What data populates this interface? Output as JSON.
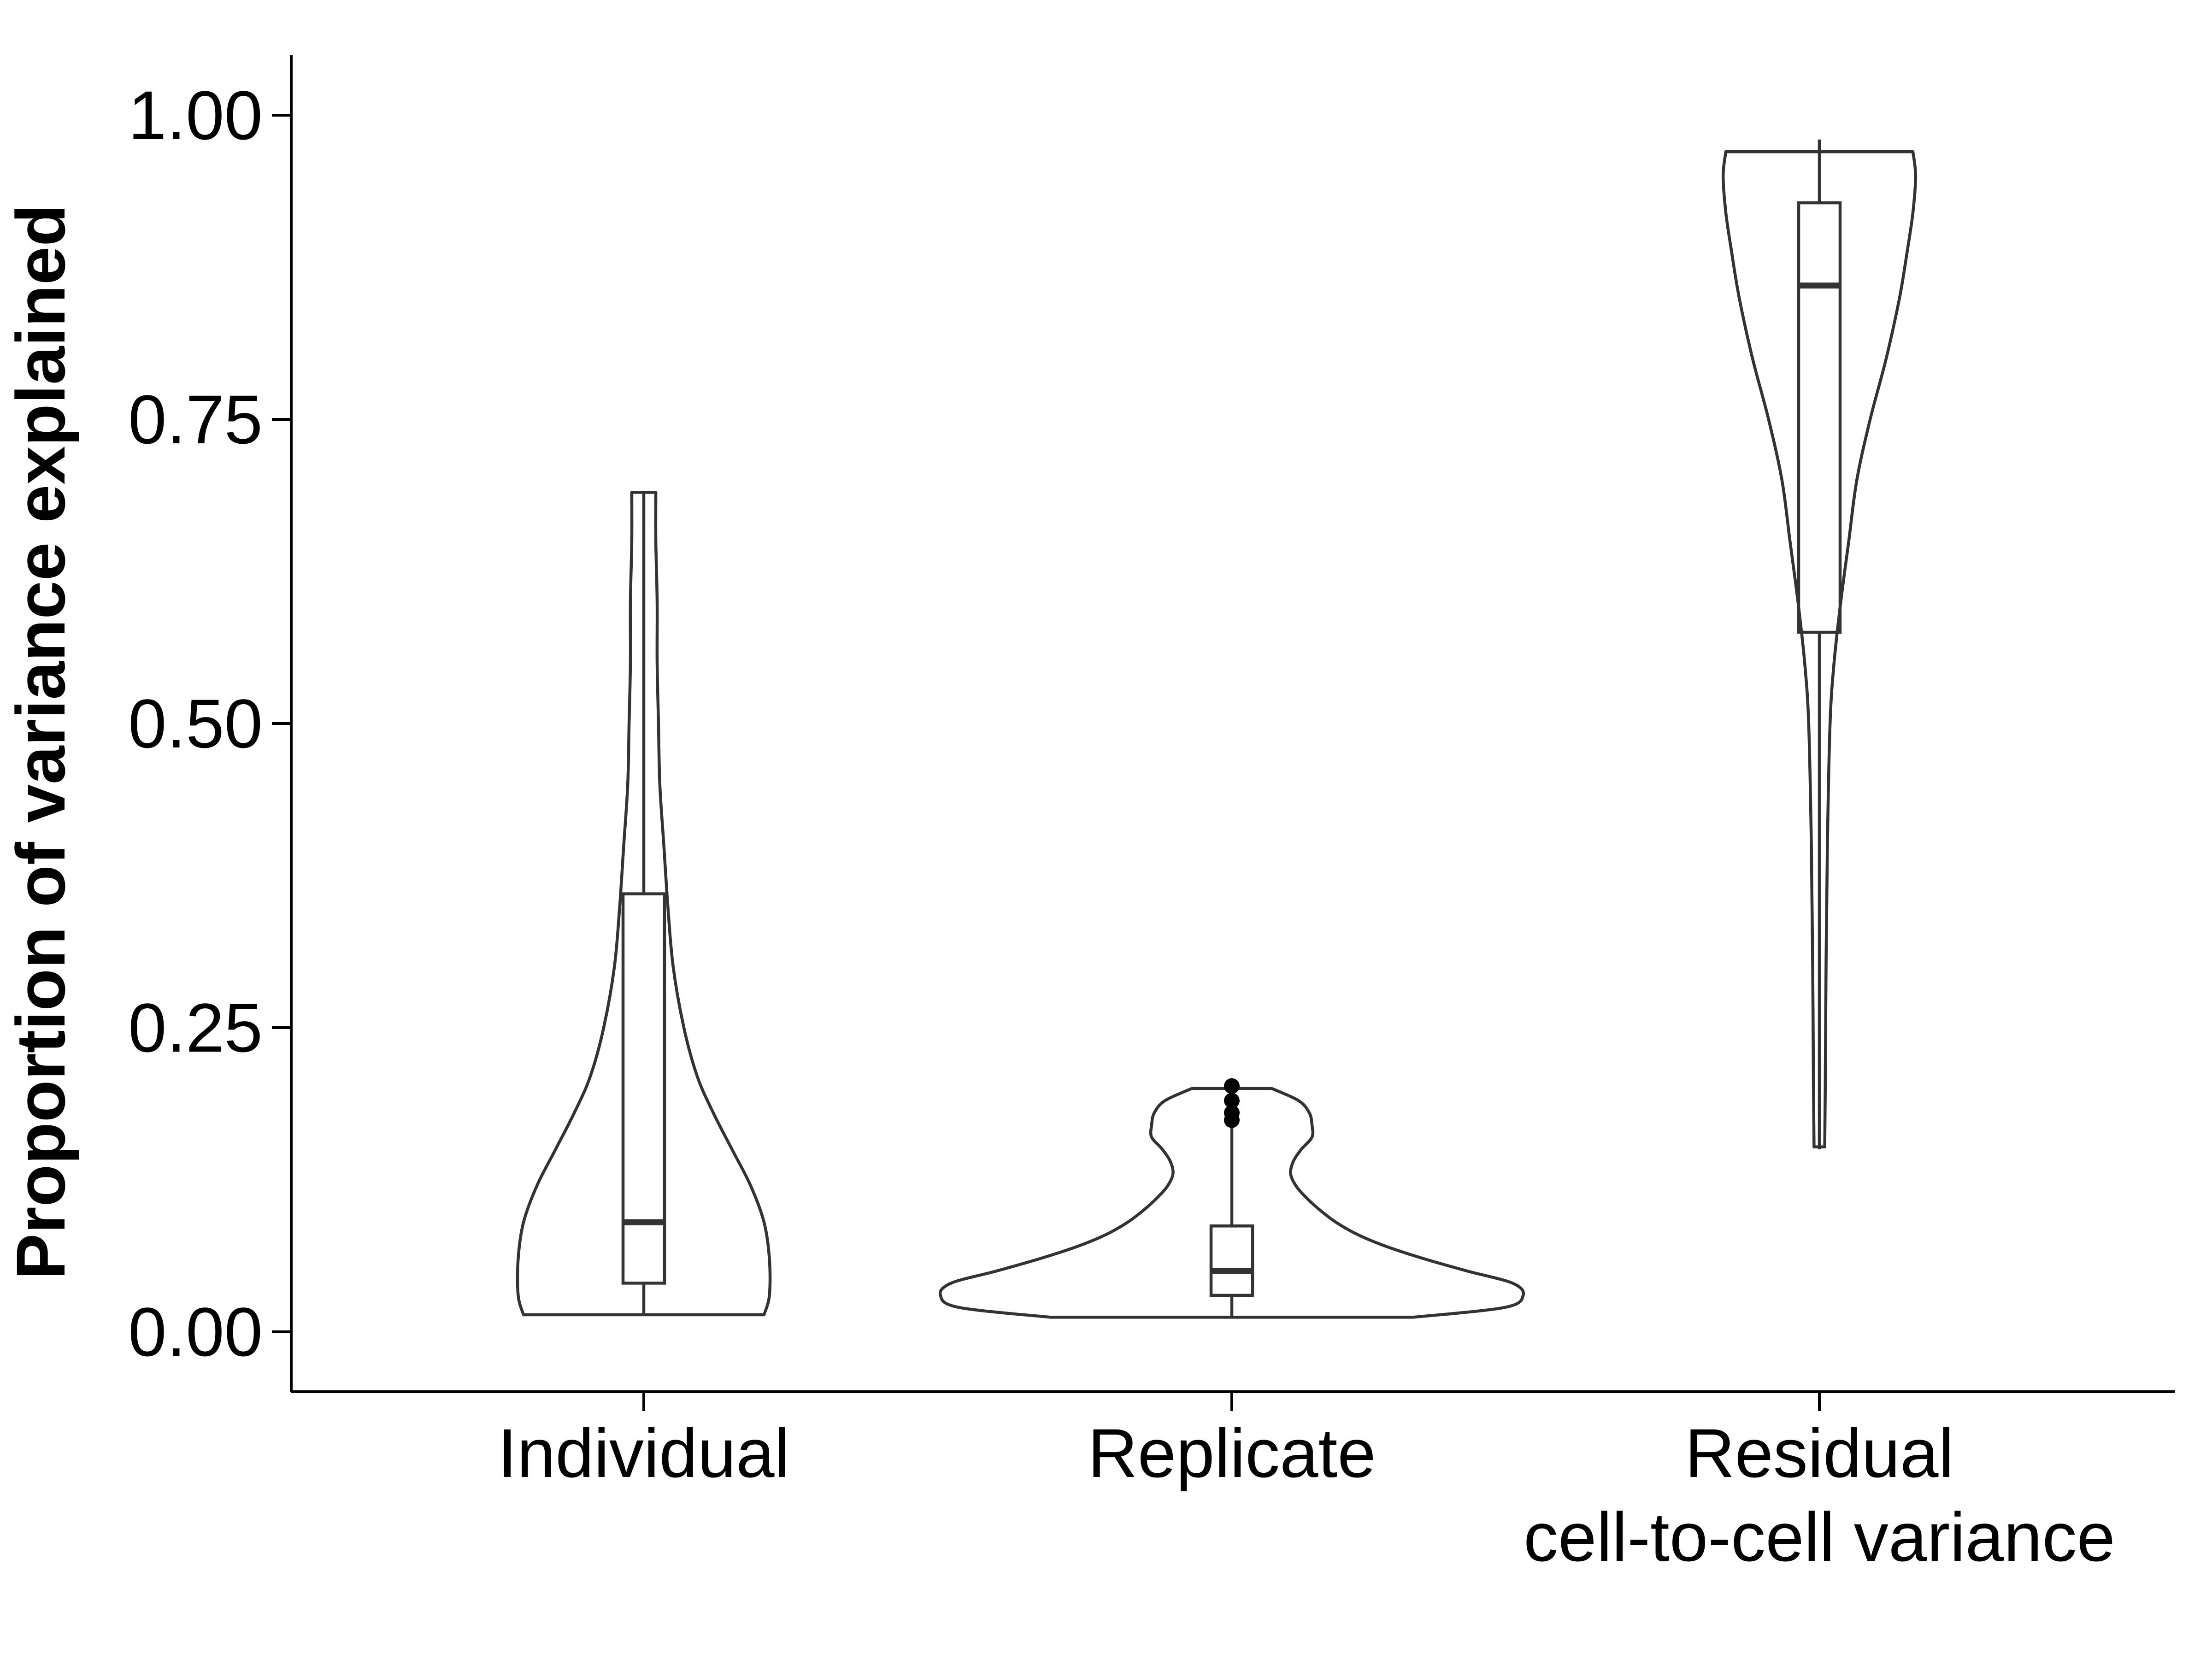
{
  "chart_data": {
    "type": "violin",
    "xlabel": "",
    "ylabel": "Proportion of variance explained",
    "ylim": [
      -0.05,
      1.05
    ],
    "y_ticks": [
      {
        "value": 0.0,
        "label": "0.00"
      },
      {
        "value": 0.25,
        "label": "0.25"
      },
      {
        "value": 0.5,
        "label": "0.50"
      },
      {
        "value": 0.75,
        "label": "0.75"
      },
      {
        "value": 1.0,
        "label": "1.00"
      }
    ],
    "grid": false,
    "legend": "none",
    "series": [
      {
        "category": "Individual",
        "category_lines": [
          "Individual"
        ],
        "min": 0.014,
        "q1": 0.04,
        "median": 0.09,
        "q3": 0.36,
        "max": 0.69,
        "outliers": [],
        "density": [
          [
            0.014,
            0.45
          ],
          [
            0.03,
            0.47
          ],
          [
            0.06,
            0.47
          ],
          [
            0.09,
            0.45
          ],
          [
            0.12,
            0.4
          ],
          [
            0.15,
            0.33
          ],
          [
            0.18,
            0.26
          ],
          [
            0.21,
            0.2
          ],
          [
            0.25,
            0.15
          ],
          [
            0.3,
            0.11
          ],
          [
            0.35,
            0.09
          ],
          [
            0.4,
            0.075
          ],
          [
            0.45,
            0.06
          ],
          [
            0.5,
            0.055
          ],
          [
            0.55,
            0.05
          ],
          [
            0.6,
            0.05
          ],
          [
            0.65,
            0.045
          ],
          [
            0.69,
            0.045
          ]
        ]
      },
      {
        "category": "Replicate",
        "category_lines": [
          "Replicate"
        ],
        "min": 0.012,
        "q1": 0.03,
        "median": 0.05,
        "q3": 0.087,
        "max": 0.168,
        "outliers": [
          0.174,
          0.18,
          0.19,
          0.202
        ],
        "density": [
          [
            0.012,
            0.68
          ],
          [
            0.02,
            1.02
          ],
          [
            0.03,
            1.09
          ],
          [
            0.04,
            1.05
          ],
          [
            0.05,
            0.88
          ],
          [
            0.06,
            0.72
          ],
          [
            0.07,
            0.58
          ],
          [
            0.08,
            0.47
          ],
          [
            0.09,
            0.39
          ],
          [
            0.1,
            0.33
          ],
          [
            0.11,
            0.28
          ],
          [
            0.12,
            0.24
          ],
          [
            0.13,
            0.22
          ],
          [
            0.14,
            0.23
          ],
          [
            0.15,
            0.26
          ],
          [
            0.16,
            0.3
          ],
          [
            0.17,
            0.3
          ],
          [
            0.18,
            0.29
          ],
          [
            0.19,
            0.25
          ],
          [
            0.2,
            0.15
          ]
        ]
      },
      {
        "category": "Residual\ncell-to-cell variance",
        "category_lines": [
          "Residual",
          "cell-to-cell variance"
        ],
        "min": 0.15,
        "q1": 0.575,
        "median": 0.86,
        "q3": 0.928,
        "max": 0.98,
        "outliers": [],
        "density": [
          [
            0.152,
            0.02
          ],
          [
            0.2,
            0.022
          ],
          [
            0.3,
            0.025
          ],
          [
            0.4,
            0.03
          ],
          [
            0.5,
            0.04
          ],
          [
            0.55,
            0.055
          ],
          [
            0.6,
            0.08
          ],
          [
            0.65,
            0.11
          ],
          [
            0.7,
            0.14
          ],
          [
            0.75,
            0.19
          ],
          [
            0.8,
            0.25
          ],
          [
            0.85,
            0.3
          ],
          [
            0.89,
            0.33
          ],
          [
            0.92,
            0.35
          ],
          [
            0.95,
            0.36
          ],
          [
            0.97,
            0.35
          ]
        ]
      }
    ]
  }
}
